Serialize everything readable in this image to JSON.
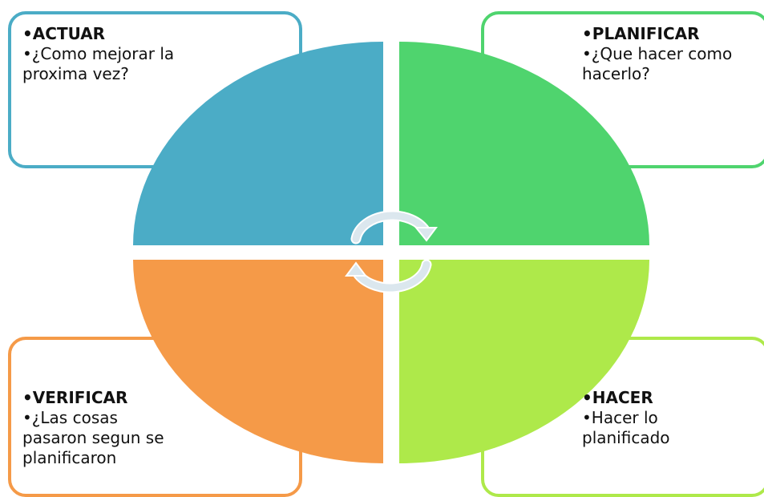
{
  "colors": {
    "actuar": "#4bacc6",
    "planificar": "#4fd46e",
    "verificar": "#f59a48",
    "hacer": "#aee94a",
    "arrows": "#dbe7ee"
  },
  "actuar": {
    "title": "•ACTUAR",
    "lines": [
      "•¿Como mejorar la",
      "proxima vez?"
    ]
  },
  "planificar": {
    "title": "•PLANIFICAR",
    "lines": [
      "•¿Que hacer como",
      "hacerlo?"
    ]
  },
  "verificar": {
    "title": "•VERIFICAR",
    "lines": [
      "•¿Las cosas",
      "pasaron segun se",
      "planificaron"
    ]
  },
  "hacer": {
    "title": "•HACER",
    "lines": [
      "•Hacer lo",
      "planificado"
    ]
  },
  "icons": {
    "cycle_arrows": "circular-arrows-icon"
  }
}
